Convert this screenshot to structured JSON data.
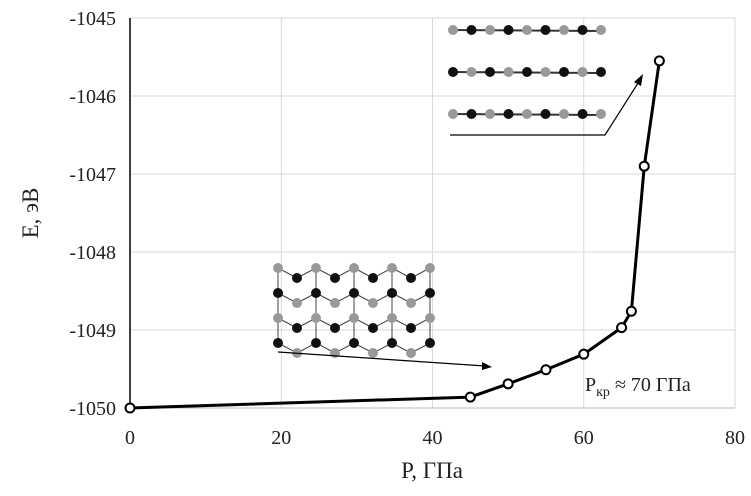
{
  "chart_data": {
    "type": "line",
    "x_label": "P, ГПа",
    "y_label": "E, эВ",
    "x": [
      0,
      45,
      50,
      55,
      60,
      65,
      66.3,
      68,
      70
    ],
    "series": [
      {
        "color": "#000000",
        "values": [
          -1050,
          -1049.86,
          -1049.69,
          -1049.51,
          -1049.31,
          -1048.97,
          -1048.76,
          -1046.9,
          -1045.55
        ]
      }
    ],
    "xlim": [
      0,
      80
    ],
    "xticks": [
      0,
      20,
      40,
      60,
      80
    ],
    "ylim": [
      -1050,
      -1045
    ],
    "yticks": [
      -1050,
      -1049,
      -1048,
      -1047,
      -1046,
      -1045
    ],
    "grid": true,
    "annotation": {
      "main": "P",
      "sub": "кр",
      "rest": "≈ 70 ГПа"
    }
  }
}
